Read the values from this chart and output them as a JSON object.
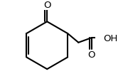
{
  "background_color": "#ffffff",
  "line_color": "#000000",
  "line_width": 1.5,
  "figsize": [
    1.73,
    1.15
  ],
  "dpi": 100,
  "O_label": "O",
  "OH_label": "OH",
  "font_size": 9.5
}
